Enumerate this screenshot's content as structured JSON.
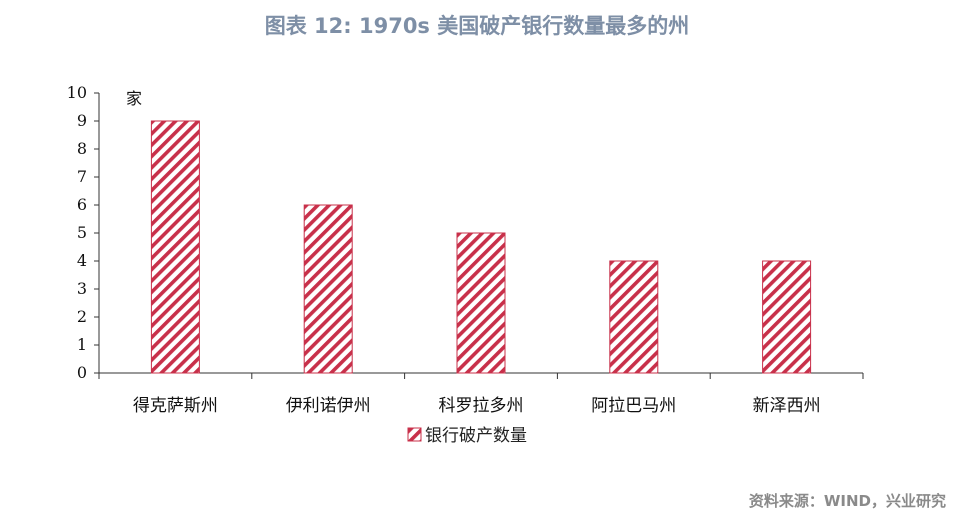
{
  "title": "图表 12: 1970s 美国破产银行数量最多的州",
  "source": "资料来源：WIND，兴业研究",
  "chart_data": {
    "type": "bar",
    "categories": [
      "得克萨斯州",
      "伊利诺伊州",
      "科罗拉多州",
      "阿拉巴马州",
      "新泽西州"
    ],
    "series": [
      {
        "name": "银行破产数量",
        "values": [
          9,
          6,
          5,
          4,
          4
        ]
      }
    ],
    "ylabel": "家",
    "ylim": [
      0,
      10
    ],
    "yticks": [
      0,
      1,
      2,
      3,
      4,
      5,
      6,
      7,
      8,
      9,
      10
    ],
    "grid": false,
    "legend_position": "bottom",
    "bar_color": "#c8304a"
  }
}
